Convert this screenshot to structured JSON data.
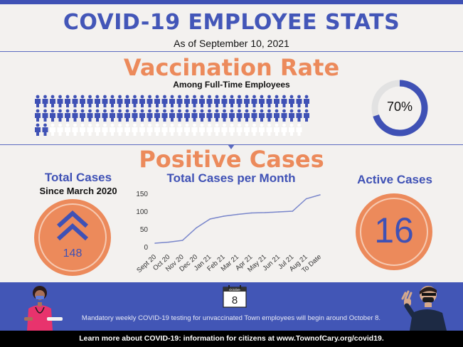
{
  "header": {
    "title": "COVID-19 EMPLOYEE STATS",
    "date": "As of September 10, 2021"
  },
  "vaccination": {
    "title": "Vaccination Rate",
    "subtitle": "Among Full-Time Employees",
    "rate_label": "70%",
    "rate_fraction": 0.7,
    "icons_filled": 70,
    "icons_total": 100,
    "colors": {
      "filled": "#3f51b5",
      "empty": "#ffffff",
      "ring_bg": "#e2e2e2"
    }
  },
  "positive": {
    "title": "Positive Cases",
    "total_title": "Total Cases",
    "total_subtitle": "Since March 2020",
    "total_value": "148",
    "active_title": "Active Cases",
    "active_value": "16"
  },
  "chart_data": {
    "type": "line",
    "title": "Total Cases per Month",
    "categories": [
      "Sept 20",
      "Oct 20",
      "Nov 20",
      "Dec 20",
      "Jan 21",
      "Feb 21",
      "Mar 21",
      "Apr 21",
      "May 21",
      "Jun 21",
      "Jul 21",
      "Aug 21",
      "To Date"
    ],
    "values": [
      12,
      15,
      20,
      55,
      80,
      88,
      93,
      97,
      98,
      100,
      102,
      137,
      148
    ],
    "yticks": [
      0,
      50,
      100,
      150
    ],
    "ylim": [
      0,
      160
    ],
    "grid": false,
    "color": "#7986cb"
  },
  "banner": {
    "calendar_month": "October",
    "calendar_day": "8",
    "message": "Mandatory weekly COVID-19 testing for unvaccinated Town employees will begin around October 8."
  },
  "footer": {
    "text": "Learn more about COVID-19: information for citizens at www.TownofCary.org/covid19."
  },
  "colors": {
    "accent_blue": "#3f51b5",
    "accent_orange": "#ec8a5b",
    "banner": "#4256b6"
  }
}
